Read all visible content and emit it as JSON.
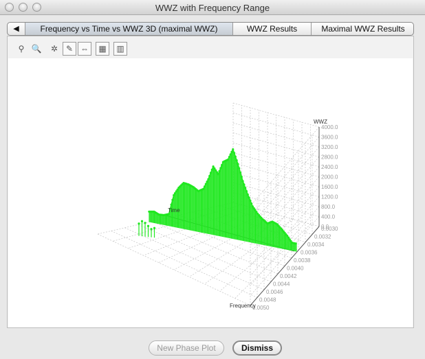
{
  "window": {
    "title": "WWZ with Frequency Range"
  },
  "tabs": {
    "scroll_left": "◀",
    "items": [
      {
        "label": "Frequency vs Time vs WWZ 3D (maximal WWZ)",
        "selected": true
      },
      {
        "label": "WWZ Results",
        "selected": false
      },
      {
        "label": "Maximal WWZ Results",
        "selected": false
      }
    ]
  },
  "toolbar": {
    "icons": [
      "zoom-pan-icon",
      "zoom-icon",
      "rotate-icon",
      "zoom-select-icon",
      "scale-icon",
      "chart-settings-icon",
      "grid-table-icon"
    ],
    "glyphs": [
      "⚲",
      "🔍",
      "✲",
      "✎",
      "⇔",
      "▦",
      "▥"
    ]
  },
  "chart_data": {
    "type": "bar3d",
    "z_label": "WWZ",
    "x_label": "Time",
    "y_label": "Frequency",
    "z_ticks": [
      "0.0",
      "400.0",
      "800.0",
      "1200.0",
      "1600.0",
      "2000.0",
      "2400.0",
      "2800.0",
      "3200.0",
      "3600.0",
      "4000.0"
    ],
    "freq_ticks": [
      "0.0030",
      "0.0032",
      "0.0034",
      "0.0036",
      "0.0038",
      "0.0040",
      "0.0042",
      "0.0044",
      "0.0046",
      "0.0048",
      "0.0050"
    ],
    "zlim": [
      0,
      4000
    ],
    "series_color": "#1fe81f",
    "wwz_values": [
      420,
      460,
      380,
      400,
      480,
      1280,
      1620,
      1850,
      1830,
      1760,
      1640,
      1770,
      2200,
      2750,
      2480,
      3010,
      3150,
      3600,
      3050,
      2400,
      1900,
      1460,
      1210,
      1030,
      900,
      1010,
      940,
      760,
      560,
      320
    ]
  },
  "buttons": {
    "new_phase_plot": "New Phase Plot",
    "dismiss": "Dismiss"
  }
}
